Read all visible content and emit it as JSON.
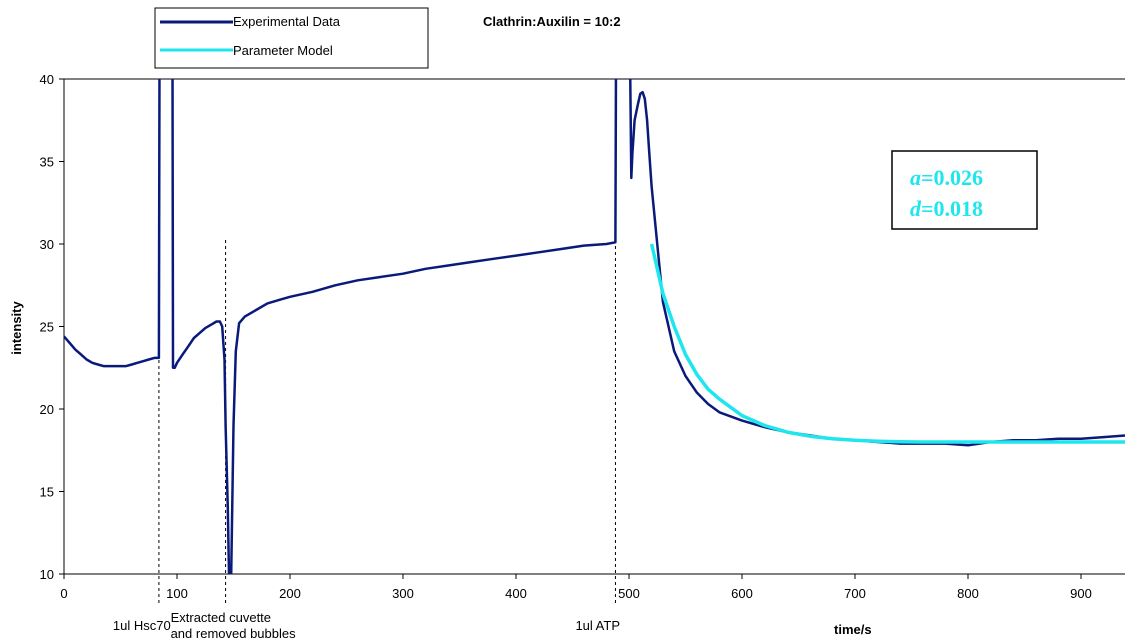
{
  "chart_data": {
    "type": "line",
    "title": "Clathrin:Auxilin = 10:2",
    "xlabel": "time/s",
    "ylabel": "intensity",
    "xlim": [
      0,
      940
    ],
    "ylim": [
      10,
      40
    ],
    "x_ticks": [
      0,
      100,
      200,
      300,
      400,
      500,
      600,
      700,
      800,
      900
    ],
    "y_ticks": [
      10,
      15,
      20,
      25,
      30,
      35,
      40
    ],
    "grid": false,
    "legend_position": "top-left",
    "series": [
      {
        "name": "Experimental Data",
        "color": "#0a1a7a",
        "x": [
          0,
          5,
          10,
          15,
          20,
          25,
          30,
          35,
          40,
          45,
          50,
          55,
          60,
          65,
          70,
          75,
          80,
          84,
          84.5,
          87,
          93,
          96,
          96.5,
          98,
          100,
          105,
          110,
          115,
          120,
          125,
          130,
          135,
          138,
          140,
          142,
          143,
          145,
          146,
          147,
          148,
          150,
          152,
          155,
          160,
          170,
          180,
          190,
          200,
          220,
          240,
          260,
          280,
          300,
          320,
          340,
          360,
          380,
          400,
          420,
          440,
          460,
          480,
          488,
          488.5,
          490,
          500,
          501,
          502,
          503,
          505,
          508,
          510,
          512,
          514,
          516,
          518,
          520,
          530,
          540,
          550,
          560,
          570,
          580,
          600,
          620,
          640,
          660,
          680,
          700,
          720,
          740,
          760,
          780,
          800,
          820,
          840,
          860,
          880,
          900,
          920,
          940
        ],
        "values": [
          24.4,
          24.0,
          23.6,
          23.3,
          23.0,
          22.8,
          22.7,
          22.6,
          22.6,
          22.6,
          22.6,
          22.6,
          22.7,
          22.8,
          22.9,
          23.0,
          23.1,
          23.1,
          41,
          41,
          41,
          41,
          22.5,
          22.5,
          22.8,
          23.3,
          23.8,
          24.3,
          24.6,
          24.9,
          25.1,
          25.3,
          25.3,
          25.0,
          23.0,
          19.0,
          14.0,
          10.0,
          10.0,
          10.0,
          19.0,
          23.5,
          25.2,
          25.6,
          26.0,
          26.4,
          26.6,
          26.8,
          27.1,
          27.5,
          27.8,
          28.0,
          28.2,
          28.5,
          28.7,
          28.9,
          29.1,
          29.3,
          29.5,
          29.7,
          29.9,
          30.0,
          30.1,
          41,
          41,
          41,
          41,
          34.0,
          35.5,
          37.5,
          38.5,
          39.1,
          39.2,
          38.8,
          37.5,
          35.5,
          33.5,
          26.5,
          23.5,
          22.0,
          21.0,
          20.3,
          19.8,
          19.3,
          18.9,
          18.6,
          18.4,
          18.2,
          18.1,
          18.0,
          17.9,
          17.9,
          17.9,
          17.8,
          18.0,
          18.1,
          18.1,
          18.2,
          18.2,
          18.3,
          18.4
        ]
      },
      {
        "name": "Parameter Model",
        "color": "#1fe6ee",
        "x": [
          520,
          525,
          530,
          540,
          550,
          560,
          570,
          580,
          590,
          600,
          620,
          640,
          660,
          680,
          700,
          720,
          740,
          760,
          780,
          800,
          820,
          840,
          860,
          880,
          900,
          920,
          940
        ],
        "values": [
          30.0,
          28.5,
          27.0,
          25.0,
          23.3,
          22.1,
          21.2,
          20.6,
          20.1,
          19.6,
          19.0,
          18.6,
          18.35,
          18.2,
          18.1,
          18.05,
          18.02,
          18.0,
          18.0,
          18.0,
          18.0,
          18.0,
          18.0,
          18.0,
          18.0,
          18.0,
          18.0
        ]
      }
    ],
    "annotations": [
      {
        "x": 84,
        "label": "1ul Hsc70"
      },
      {
        "x": 143,
        "label": "Extracted cuvette",
        "label2": "and removed bubbles"
      },
      {
        "x": 488,
        "label": "1ul ATP"
      }
    ],
    "param_box": {
      "line1_var": "a",
      "line1_val": "=0.026",
      "line2_var": "d",
      "line2_val": "=0.018",
      "color": "#1fe6ee"
    }
  }
}
